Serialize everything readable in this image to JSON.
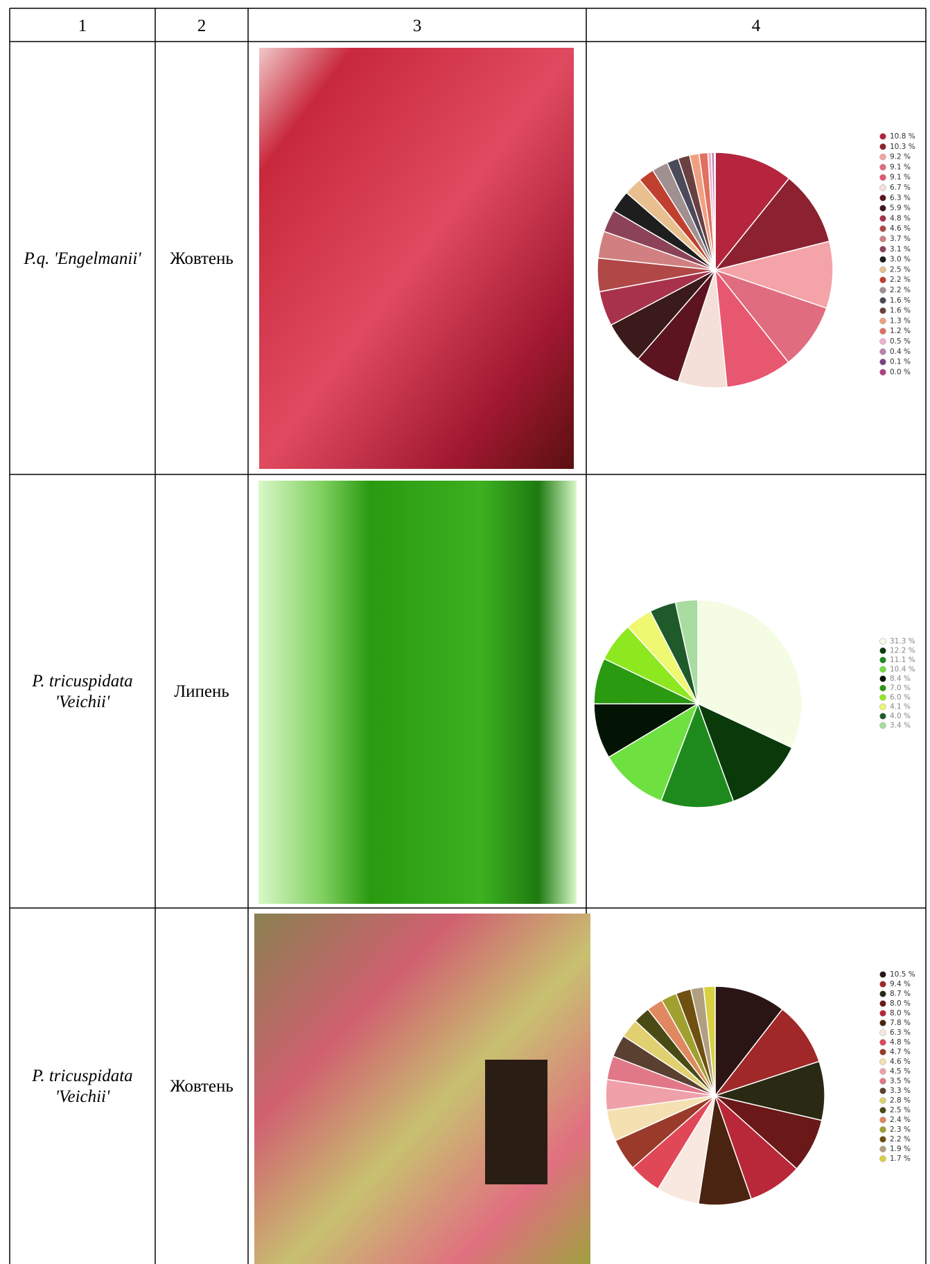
{
  "header": [
    "1",
    "2",
    "3",
    "4"
  ],
  "rows": [
    {
      "species": [
        "P.q. 'Engelmanii'"
      ],
      "month": "Жовтень",
      "pie": {
        "type": "pie",
        "values": [
          10.8,
          10.3,
          9.2,
          9.1,
          9.1,
          6.7,
          6.3,
          5.9,
          4.8,
          4.6,
          3.7,
          3.1,
          3.0,
          2.5,
          2.2,
          2.2,
          1.6,
          1.6,
          1.3,
          1.2,
          0.5,
          0.4,
          0.1,
          0.0
        ],
        "value_labels": [
          "10.8 %",
          "10.3 %",
          "9.2 %",
          "9.1 %",
          "9.1 %",
          "6.7 %",
          "6.3 %",
          "5.9 %",
          "4.8 %",
          "4.6 %",
          "3.7 %",
          "3.1 %",
          "3.0 %",
          "2.5 %",
          "2.2 %",
          "2.2 %",
          "1.6 %",
          "1.6 %",
          "1.3 %",
          "1.2 %",
          "0.5 %",
          "0.4 %",
          "0.1 %",
          "0.0 %"
        ],
        "colors": [
          "#b5253d",
          "#8c2230",
          "#f4a3a8",
          "#e06d7f",
          "#e85770",
          "#f4e0d8",
          "#5c1520",
          "#3a1a1a",
          "#a8324a",
          "#b04848",
          "#d08080",
          "#8c4358",
          "#1e1e1e",
          "#e8c090",
          "#c04030",
          "#a09090",
          "#4a4a5a",
          "#6a4040",
          "#f0a080",
          "#e07060",
          "#f0b0d0",
          "#c080b0",
          "#804080",
          "#b04080"
        ]
      }
    },
    {
      "species": [
        "P. tricuspidata",
        "'Veichii'"
      ],
      "month": "Липень",
      "pie": {
        "type": "pie",
        "values": [
          31.3,
          12.2,
          11.1,
          10.4,
          8.4,
          7.0,
          6.0,
          4.1,
          4.0,
          3.4
        ],
        "value_labels": [
          "31.3 %",
          "12.2 %",
          "11.1 %",
          "10.4 %",
          "8.4 %",
          "7.0 %",
          "6.0 %",
          "4.1 %",
          "4.0 %",
          "3.4 %"
        ],
        "colors": [
          "#f4fde4",
          "#0a3a0a",
          "#1e8a1e",
          "#6ee040",
          "#041404",
          "#2a9a10",
          "#8ee820",
          "#eef870",
          "#1f5a2a",
          "#a8dca0"
        ]
      }
    },
    {
      "species": [
        "P. tricuspidata",
        "'Veichii'"
      ],
      "month": "Жовтень",
      "pie": {
        "type": "pie",
        "values": [
          10.5,
          9.4,
          8.7,
          8.0,
          8.0,
          7.8,
          6.3,
          4.8,
          4.7,
          4.6,
          4.5,
          3.5,
          3.3,
          2.8,
          2.5,
          2.4,
          2.3,
          2.2,
          1.9,
          1.7
        ],
        "value_labels": [
          "10.5 %",
          "9.4 %",
          "8.7 %",
          "8.0 %",
          "8.0 %",
          "7.8 %",
          "6.3 %",
          "4.8 %",
          "4.7 %",
          "4.6 %",
          "4.5 %",
          "3.5 %",
          "3.3 %",
          "2.8 %",
          "2.5 %",
          "2.4 %",
          "2.3 %",
          "2.2 %",
          "1.9 %",
          "1.7 %"
        ],
        "colors": [
          "#2a1414",
          "#a02828",
          "#2a2a14",
          "#6a1818",
          "#b82838",
          "#4a2410",
          "#f8e8e0",
          "#e04858",
          "#9a3a2a",
          "#f4e0b0",
          "#f0a0a8",
          "#e07888",
          "#5a4030",
          "#e0d070",
          "#4a4a14",
          "#e08860",
          "#a0a030",
          "#705010",
          "#b0a080",
          "#d8d040"
        ]
      }
    }
  ]
}
